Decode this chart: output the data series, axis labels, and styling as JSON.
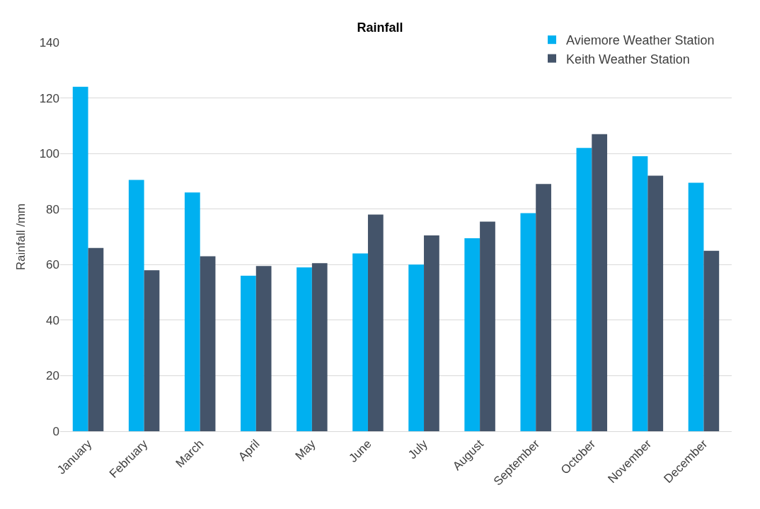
{
  "chart_data": {
    "type": "bar",
    "title": "Rainfall",
    "ylabel": "Rainfall /mm",
    "categories": [
      "January",
      "February",
      "March",
      "April",
      "May",
      "June",
      "July",
      "August",
      "September",
      "October",
      "November",
      "December"
    ],
    "series": [
      {
        "name": "Aviemore Weather Station",
        "color": "#00b0f0",
        "values": [
          124,
          90.5,
          86,
          56,
          59,
          64,
          60,
          69.5,
          78.5,
          102,
          99,
          89.5
        ]
      },
      {
        "name": "Keith Weather Station",
        "color": "#44546a",
        "values": [
          66,
          58,
          63,
          59.5,
          60.5,
          78,
          70.5,
          75.5,
          89,
          107,
          92,
          65
        ]
      }
    ],
    "ylim": [
      0,
      140
    ],
    "yticks": [
      0,
      20,
      40,
      60,
      80,
      100,
      120,
      140
    ],
    "grid": "y",
    "legend": "top right"
  }
}
